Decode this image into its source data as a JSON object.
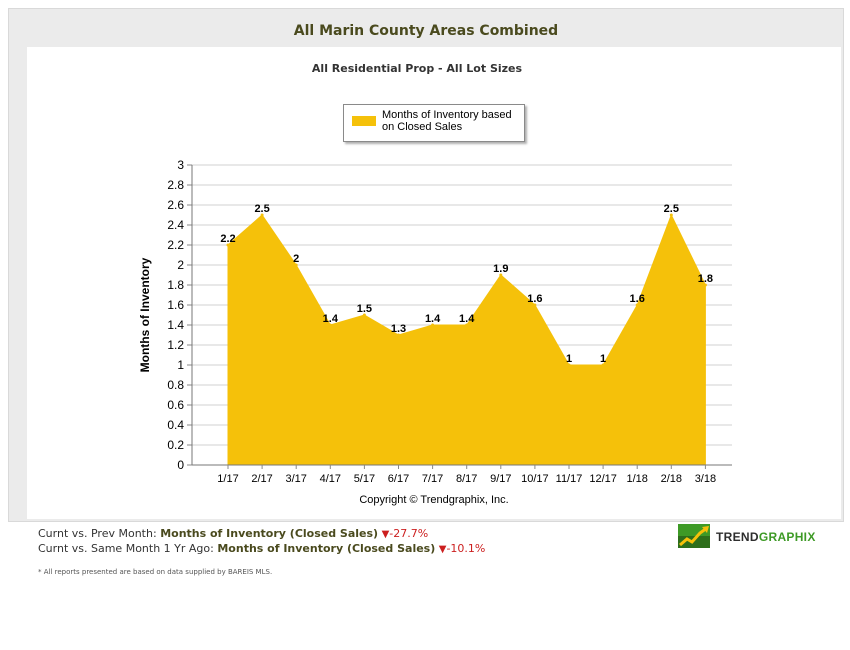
{
  "header": {
    "title": "All Marin County Areas Combined"
  },
  "chart_data": {
    "type": "area",
    "title": "All Residential Prop - All Lot Sizes",
    "categories": [
      "1/17",
      "2/17",
      "3/17",
      "4/17",
      "5/17",
      "6/17",
      "7/17",
      "8/17",
      "9/17",
      "10/17",
      "11/17",
      "12/17",
      "1/18",
      "2/18",
      "3/18"
    ],
    "values": [
      2.2,
      2.5,
      2.0,
      1.4,
      1.5,
      1.3,
      1.4,
      1.4,
      1.9,
      1.6,
      1.0,
      1.0,
      1.6,
      2.5,
      1.8
    ],
    "data_labels": [
      "2.2",
      "2.5",
      "2",
      "1.4",
      "1.5",
      "1.3",
      "1.4",
      "1.4",
      "1.9",
      "1.6",
      "1",
      "1",
      "1.6",
      "2.5",
      "1.8"
    ],
    "series_name": "Months of Inventory based on Closed Sales",
    "ylabel": "Months of Inventory",
    "xlabel": "",
    "ylim": [
      0,
      3
    ],
    "yticks": [
      "0",
      "0.2",
      "0.4",
      "0.6",
      "0.8",
      "1",
      "1.2",
      "1.4",
      "1.6",
      "1.8",
      "2",
      "2.2",
      "2.4",
      "2.6",
      "2.8",
      "3"
    ],
    "grid": true,
    "legend_position": "top-center",
    "color": "#f5c10a"
  },
  "legend": {
    "line1": "Months of Inventory based",
    "line2": "on Closed Sales"
  },
  "copyright": "Copyright © Trendgraphix, Inc.",
  "stats": {
    "row1": {
      "label": "Curnt vs. Prev Month:",
      "metric": "Months of Inventory (Closed Sales)",
      "change": "-27.7%"
    },
    "row2": {
      "label": "Curnt vs. Same Month 1 Yr Ago:",
      "metric": "Months of Inventory (Closed Sales)",
      "change": "-10.1%"
    }
  },
  "footnote": "* All reports presented are based on data supplied by BAREIS MLS.",
  "brand": {
    "part1": "TREND",
    "part2": "GRAPHIX"
  },
  "icons": {
    "down-arrow": "▼"
  }
}
